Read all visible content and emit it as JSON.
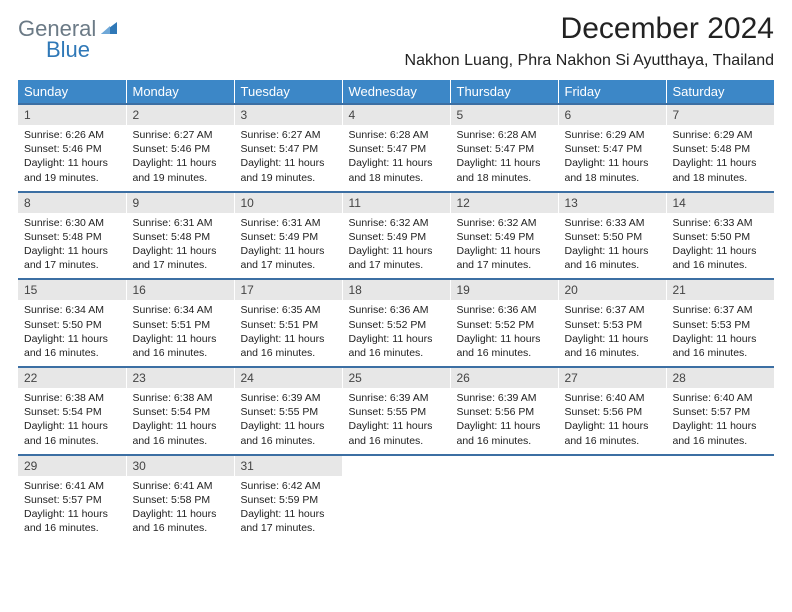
{
  "brand": {
    "word1": "General",
    "word2": "Blue",
    "word1_color": "#6b7a86",
    "word2_color": "#2f78b7",
    "sail_color": "#2f78b7"
  },
  "title": "December 2024",
  "location": "Nakhon Luang, Phra Nakhon Si Ayutthaya, Thailand",
  "colors": {
    "header_bg": "#3c87c7",
    "header_fg": "#ffffff",
    "row_border": "#3c6fa3",
    "daynum_bg": "#e7e7e7",
    "text": "#222222",
    "page_bg": "#ffffff"
  },
  "day_headers": [
    "Sunday",
    "Monday",
    "Tuesday",
    "Wednesday",
    "Thursday",
    "Friday",
    "Saturday"
  ],
  "weeks": [
    [
      {
        "n": "1",
        "l1": "Sunrise: 6:26 AM",
        "l2": "Sunset: 5:46 PM",
        "l3": "Daylight: 11 hours",
        "l4": "and 19 minutes."
      },
      {
        "n": "2",
        "l1": "Sunrise: 6:27 AM",
        "l2": "Sunset: 5:46 PM",
        "l3": "Daylight: 11 hours",
        "l4": "and 19 minutes."
      },
      {
        "n": "3",
        "l1": "Sunrise: 6:27 AM",
        "l2": "Sunset: 5:47 PM",
        "l3": "Daylight: 11 hours",
        "l4": "and 19 minutes."
      },
      {
        "n": "4",
        "l1": "Sunrise: 6:28 AM",
        "l2": "Sunset: 5:47 PM",
        "l3": "Daylight: 11 hours",
        "l4": "and 18 minutes."
      },
      {
        "n": "5",
        "l1": "Sunrise: 6:28 AM",
        "l2": "Sunset: 5:47 PM",
        "l3": "Daylight: 11 hours",
        "l4": "and 18 minutes."
      },
      {
        "n": "6",
        "l1": "Sunrise: 6:29 AM",
        "l2": "Sunset: 5:47 PM",
        "l3": "Daylight: 11 hours",
        "l4": "and 18 minutes."
      },
      {
        "n": "7",
        "l1": "Sunrise: 6:29 AM",
        "l2": "Sunset: 5:48 PM",
        "l3": "Daylight: 11 hours",
        "l4": "and 18 minutes."
      }
    ],
    [
      {
        "n": "8",
        "l1": "Sunrise: 6:30 AM",
        "l2": "Sunset: 5:48 PM",
        "l3": "Daylight: 11 hours",
        "l4": "and 17 minutes."
      },
      {
        "n": "9",
        "l1": "Sunrise: 6:31 AM",
        "l2": "Sunset: 5:48 PM",
        "l3": "Daylight: 11 hours",
        "l4": "and 17 minutes."
      },
      {
        "n": "10",
        "l1": "Sunrise: 6:31 AM",
        "l2": "Sunset: 5:49 PM",
        "l3": "Daylight: 11 hours",
        "l4": "and 17 minutes."
      },
      {
        "n": "11",
        "l1": "Sunrise: 6:32 AM",
        "l2": "Sunset: 5:49 PM",
        "l3": "Daylight: 11 hours",
        "l4": "and 17 minutes."
      },
      {
        "n": "12",
        "l1": "Sunrise: 6:32 AM",
        "l2": "Sunset: 5:49 PM",
        "l3": "Daylight: 11 hours",
        "l4": "and 17 minutes."
      },
      {
        "n": "13",
        "l1": "Sunrise: 6:33 AM",
        "l2": "Sunset: 5:50 PM",
        "l3": "Daylight: 11 hours",
        "l4": "and 16 minutes."
      },
      {
        "n": "14",
        "l1": "Sunrise: 6:33 AM",
        "l2": "Sunset: 5:50 PM",
        "l3": "Daylight: 11 hours",
        "l4": "and 16 minutes."
      }
    ],
    [
      {
        "n": "15",
        "l1": "Sunrise: 6:34 AM",
        "l2": "Sunset: 5:50 PM",
        "l3": "Daylight: 11 hours",
        "l4": "and 16 minutes."
      },
      {
        "n": "16",
        "l1": "Sunrise: 6:34 AM",
        "l2": "Sunset: 5:51 PM",
        "l3": "Daylight: 11 hours",
        "l4": "and 16 minutes."
      },
      {
        "n": "17",
        "l1": "Sunrise: 6:35 AM",
        "l2": "Sunset: 5:51 PM",
        "l3": "Daylight: 11 hours",
        "l4": "and 16 minutes."
      },
      {
        "n": "18",
        "l1": "Sunrise: 6:36 AM",
        "l2": "Sunset: 5:52 PM",
        "l3": "Daylight: 11 hours",
        "l4": "and 16 minutes."
      },
      {
        "n": "19",
        "l1": "Sunrise: 6:36 AM",
        "l2": "Sunset: 5:52 PM",
        "l3": "Daylight: 11 hours",
        "l4": "and 16 minutes."
      },
      {
        "n": "20",
        "l1": "Sunrise: 6:37 AM",
        "l2": "Sunset: 5:53 PM",
        "l3": "Daylight: 11 hours",
        "l4": "and 16 minutes."
      },
      {
        "n": "21",
        "l1": "Sunrise: 6:37 AM",
        "l2": "Sunset: 5:53 PM",
        "l3": "Daylight: 11 hours",
        "l4": "and 16 minutes."
      }
    ],
    [
      {
        "n": "22",
        "l1": "Sunrise: 6:38 AM",
        "l2": "Sunset: 5:54 PM",
        "l3": "Daylight: 11 hours",
        "l4": "and 16 minutes."
      },
      {
        "n": "23",
        "l1": "Sunrise: 6:38 AM",
        "l2": "Sunset: 5:54 PM",
        "l3": "Daylight: 11 hours",
        "l4": "and 16 minutes."
      },
      {
        "n": "24",
        "l1": "Sunrise: 6:39 AM",
        "l2": "Sunset: 5:55 PM",
        "l3": "Daylight: 11 hours",
        "l4": "and 16 minutes."
      },
      {
        "n": "25",
        "l1": "Sunrise: 6:39 AM",
        "l2": "Sunset: 5:55 PM",
        "l3": "Daylight: 11 hours",
        "l4": "and 16 minutes."
      },
      {
        "n": "26",
        "l1": "Sunrise: 6:39 AM",
        "l2": "Sunset: 5:56 PM",
        "l3": "Daylight: 11 hours",
        "l4": "and 16 minutes."
      },
      {
        "n": "27",
        "l1": "Sunrise: 6:40 AM",
        "l2": "Sunset: 5:56 PM",
        "l3": "Daylight: 11 hours",
        "l4": "and 16 minutes."
      },
      {
        "n": "28",
        "l1": "Sunrise: 6:40 AM",
        "l2": "Sunset: 5:57 PM",
        "l3": "Daylight: 11 hours",
        "l4": "and 16 minutes."
      }
    ],
    [
      {
        "n": "29",
        "l1": "Sunrise: 6:41 AM",
        "l2": "Sunset: 5:57 PM",
        "l3": "Daylight: 11 hours",
        "l4": "and 16 minutes."
      },
      {
        "n": "30",
        "l1": "Sunrise: 6:41 AM",
        "l2": "Sunset: 5:58 PM",
        "l3": "Daylight: 11 hours",
        "l4": "and 16 minutes."
      },
      {
        "n": "31",
        "l1": "Sunrise: 6:42 AM",
        "l2": "Sunset: 5:59 PM",
        "l3": "Daylight: 11 hours",
        "l4": "and 17 minutes."
      },
      {
        "empty": true,
        "n": "",
        "l1": "",
        "l2": "",
        "l3": "",
        "l4": ""
      },
      {
        "empty": true,
        "n": "",
        "l1": "",
        "l2": "",
        "l3": "",
        "l4": ""
      },
      {
        "empty": true,
        "n": "",
        "l1": "",
        "l2": "",
        "l3": "",
        "l4": ""
      },
      {
        "empty": true,
        "n": "",
        "l1": "",
        "l2": "",
        "l3": "",
        "l4": ""
      }
    ]
  ]
}
